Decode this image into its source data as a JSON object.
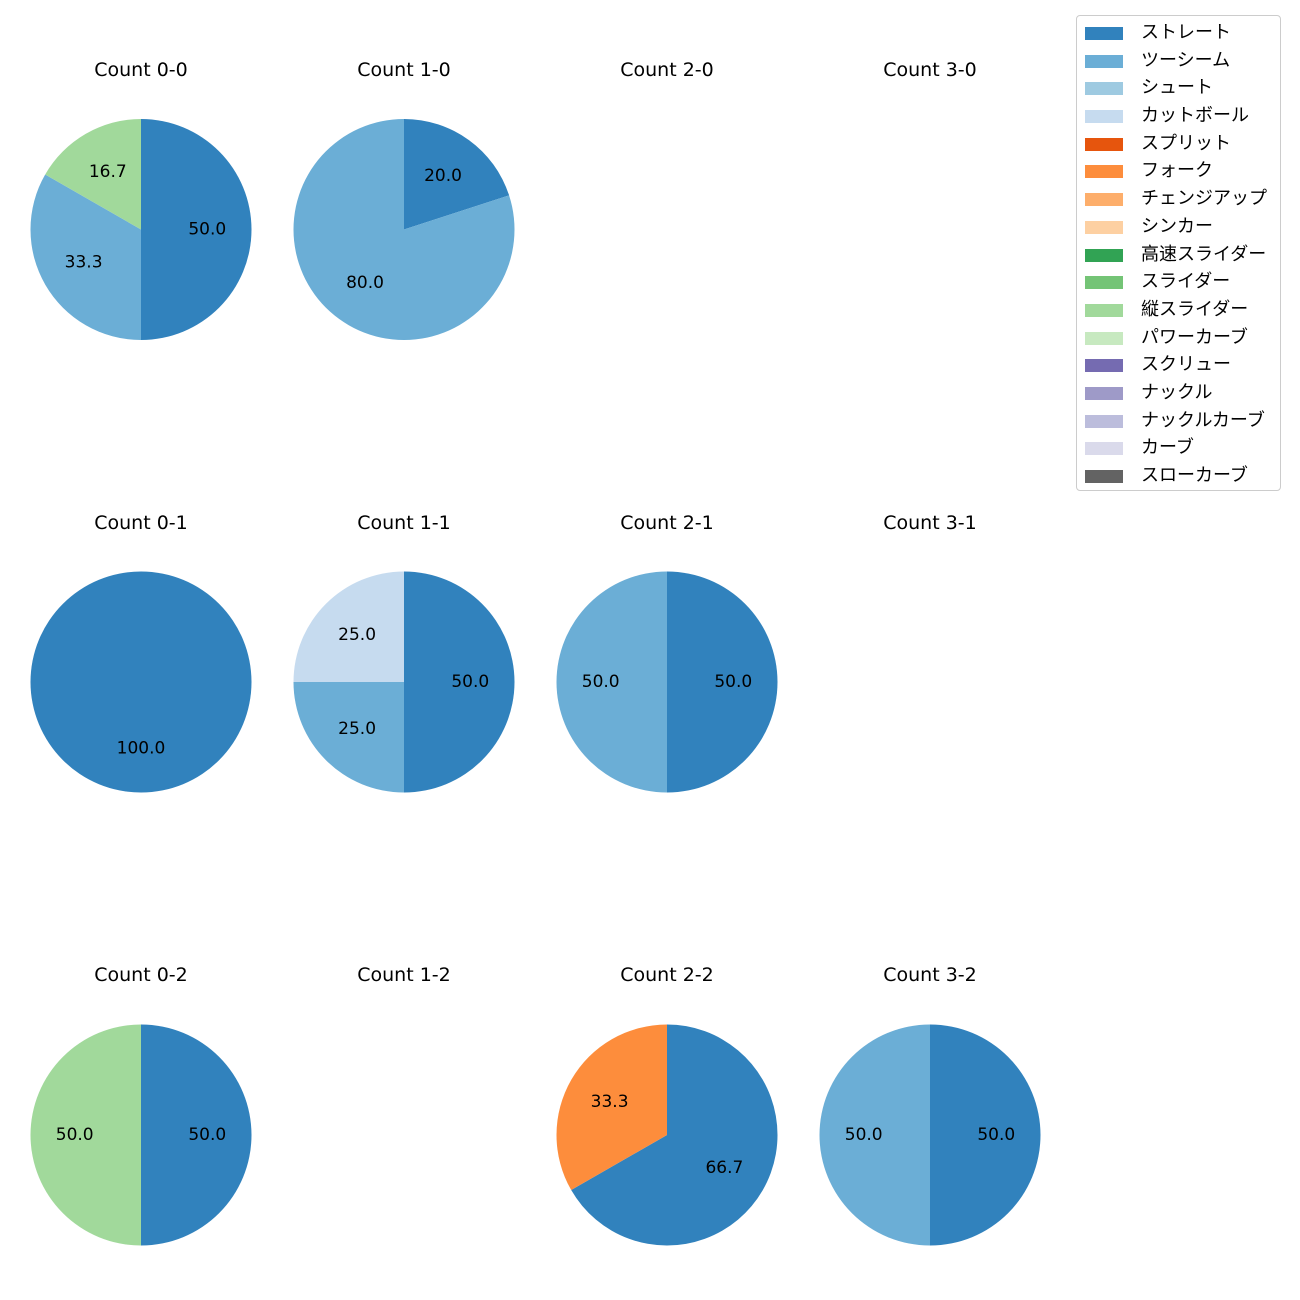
{
  "chart_data": {
    "type": "pie",
    "legend": {
      "placement": "top-right",
      "entries": [
        {
          "name": "ストレート",
          "color": "#3182bd"
        },
        {
          "name": "ツーシーム",
          "color": "#6baed6"
        },
        {
          "name": "シュート",
          "color": "#9ecae1"
        },
        {
          "name": "カットボール",
          "color": "#c6dbef"
        },
        {
          "name": "スプリット",
          "color": "#e6550d"
        },
        {
          "name": "フォーク",
          "color": "#fd8d3c"
        },
        {
          "name": "チェンジアップ",
          "color": "#fdae6b"
        },
        {
          "name": "シンカー",
          "color": "#fdd0a2"
        },
        {
          "name": "高速スライダー",
          "color": "#31a354"
        },
        {
          "name": "スライダー",
          "color": "#74c476"
        },
        {
          "name": "縦スライダー",
          "color": "#a1d99b"
        },
        {
          "name": "パワーカーブ",
          "color": "#c7e9c0"
        },
        {
          "name": "スクリュー",
          "color": "#756bb1"
        },
        {
          "name": "ナックル",
          "color": "#9e9ac8"
        },
        {
          "name": "ナックルカーブ",
          "color": "#bcbddc"
        },
        {
          "name": "カーブ",
          "color": "#dadaeb"
        },
        {
          "name": "スローカーブ",
          "color": "#636363"
        }
      ]
    },
    "charts": [
      {
        "title": "Count 0-0",
        "slices": [
          {
            "pitch": "ストレート",
            "value": 50.0,
            "label": "50.0"
          },
          {
            "pitch": "ツーシーム",
            "value": 33.3,
            "label": "33.3"
          },
          {
            "pitch": "縦スライダー",
            "value": 16.7,
            "label": "16.7"
          }
        ]
      },
      {
        "title": "Count 1-0",
        "slices": [
          {
            "pitch": "ストレート",
            "value": 20.0,
            "label": "20.0"
          },
          {
            "pitch": "ツーシーム",
            "value": 80.0,
            "label": "80.0"
          }
        ]
      },
      {
        "title": "Count 2-0",
        "slices": []
      },
      {
        "title": "Count 3-0",
        "slices": []
      },
      {
        "title": "Count 0-1",
        "slices": [
          {
            "pitch": "ストレート",
            "value": 100.0,
            "label": "100.0"
          }
        ]
      },
      {
        "title": "Count 1-1",
        "slices": [
          {
            "pitch": "ストレート",
            "value": 50.0,
            "label": "50.0"
          },
          {
            "pitch": "ツーシーム",
            "value": 25.0,
            "label": "25.0"
          },
          {
            "pitch": "カットボール",
            "value": 25.0,
            "label": "25.0"
          }
        ]
      },
      {
        "title": "Count 2-1",
        "slices": [
          {
            "pitch": "ストレート",
            "value": 50.0,
            "label": "50.0"
          },
          {
            "pitch": "ツーシーム",
            "value": 50.0,
            "label": "50.0"
          }
        ]
      },
      {
        "title": "Count 3-1",
        "slices": []
      },
      {
        "title": "Count 0-2",
        "slices": [
          {
            "pitch": "ストレート",
            "value": 50.0,
            "label": "50.0"
          },
          {
            "pitch": "縦スライダー",
            "value": 50.0,
            "label": "50.0"
          }
        ]
      },
      {
        "title": "Count 1-2",
        "slices": []
      },
      {
        "title": "Count 2-2",
        "slices": [
          {
            "pitch": "ストレート",
            "value": 66.7,
            "label": "66.7"
          },
          {
            "pitch": "フォーク",
            "value": 33.3,
            "label": "33.3"
          }
        ]
      },
      {
        "title": "Count 3-2",
        "slices": [
          {
            "pitch": "ストレート",
            "value": 50.0,
            "label": "50.0"
          },
          {
            "pitch": "ツーシーム",
            "value": 50.0,
            "label": "50.0"
          }
        ]
      }
    ]
  }
}
